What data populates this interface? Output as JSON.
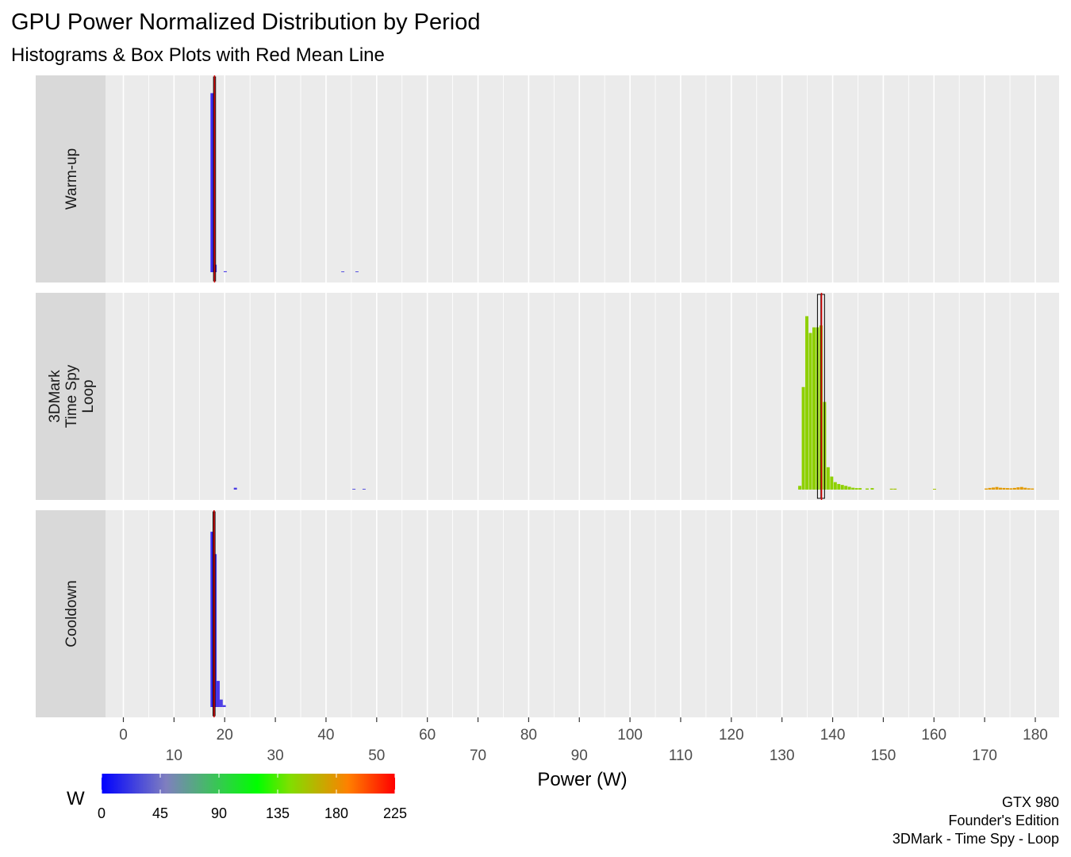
{
  "chart_data": {
    "type": "histogram",
    "title": "GPU Power Normalized Distribution by Period",
    "subtitle": "Histograms & Box Plots with Red Mean Line",
    "xlabel": "Power (W)",
    "xlim": [
      -3,
      185
    ],
    "major_ticks_row1": [
      "0",
      "20",
      "40",
      "60",
      "80",
      "100",
      "120",
      "140",
      "160",
      "180"
    ],
    "major_ticks_row2": [
      "10",
      "30",
      "50",
      "70",
      "90",
      "110",
      "130",
      "150",
      "170"
    ],
    "legend": {
      "title": "W",
      "ticks": [
        "0",
        "45",
        "90",
        "135",
        "180",
        "225"
      ],
      "range": [
        0,
        225
      ],
      "colors": [
        "#0000ff",
        "#7f7fbf",
        "#00ff00",
        "#7fdf00",
        "#ff8000",
        "#ff0000"
      ]
    },
    "caption": [
      "GTX 980",
      "Founder's Edition",
      "3DMark - Time Spy - Loop"
    ],
    "panels": [
      {
        "label": [
          "Warm-up"
        ],
        "mean": 18.0,
        "box": [
          17.6,
          17.8,
          18.0,
          18.2,
          18.4
        ],
        "bars": [
          [
            17.2,
            0.96,
            "#3a2cf0"
          ],
          [
            17.8,
            0.04,
            "#4b36e8"
          ],
          [
            19.8,
            0.005,
            "#4e3fe5"
          ],
          [
            43.0,
            0.004,
            "#5550dd"
          ],
          [
            45.8,
            0.004,
            "#5550dd"
          ]
        ]
      },
      {
        "label": [
          "3DMark",
          "Time Spy",
          "Loop"
        ],
        "mean": 137.8,
        "box": [
          136.3,
          137.0,
          137.7,
          138.4,
          139.0
        ],
        "bars": [
          [
            133.2,
            0.02,
            "#8ed000"
          ],
          [
            133.9,
            0.55,
            "#8ed000"
          ],
          [
            134.6,
            0.93,
            "#8ed000"
          ],
          [
            135.3,
            0.84,
            "#8ed000"
          ],
          [
            136.0,
            0.87,
            "#8ed000"
          ],
          [
            136.7,
            0.87,
            "#8ed000"
          ],
          [
            137.4,
            0.88,
            "#8ed000"
          ],
          [
            138.1,
            0.47,
            "#8ed000"
          ],
          [
            138.8,
            0.12,
            "#8ed000"
          ],
          [
            139.5,
            0.07,
            "#8ed000"
          ],
          [
            140.2,
            0.04,
            "#8ed000"
          ],
          [
            140.9,
            0.03,
            "#8ed000"
          ],
          [
            141.6,
            0.025,
            "#8ed000"
          ],
          [
            142.3,
            0.02,
            "#8ed000"
          ],
          [
            143.0,
            0.015,
            "#8ed000"
          ],
          [
            143.7,
            0.01,
            "#8ed000"
          ],
          [
            144.4,
            0.008,
            "#8ed000"
          ],
          [
            145.1,
            0.008,
            "#8ed000"
          ],
          [
            146.5,
            0.006,
            "#8ed000"
          ],
          [
            147.5,
            0.008,
            "#8ed000"
          ],
          [
            151.3,
            0.005,
            "#a0c400"
          ],
          [
            152.0,
            0.005,
            "#a0c400"
          ],
          [
            159.8,
            0.004,
            "#a4c000"
          ],
          [
            170.0,
            0.006,
            "#e29a00"
          ],
          [
            170.7,
            0.009,
            "#e29a00"
          ],
          [
            171.4,
            0.011,
            "#e29a00"
          ],
          [
            172.1,
            0.014,
            "#e29a00"
          ],
          [
            172.8,
            0.01,
            "#e29a00"
          ],
          [
            173.5,
            0.009,
            "#e29a00"
          ],
          [
            174.2,
            0.008,
            "#e29a00"
          ],
          [
            174.9,
            0.007,
            "#e29a00"
          ],
          [
            175.6,
            0.009,
            "#e29a00"
          ],
          [
            176.3,
            0.012,
            "#e29a00"
          ],
          [
            177.0,
            0.014,
            "#e29a00"
          ],
          [
            177.7,
            0.01,
            "#e29a00"
          ],
          [
            178.4,
            0.007,
            "#e29a00"
          ],
          [
            179.1,
            0.006,
            "#e29a00"
          ],
          [
            21.8,
            0.01,
            "#4a3be4"
          ],
          [
            45.2,
            0.004,
            "#5550dd"
          ],
          [
            47.2,
            0.004,
            "#5550dd"
          ]
        ]
      },
      {
        "label": [
          "Cooldown"
        ],
        "mean": 17.9,
        "box": [
          17.5,
          17.7,
          17.9,
          18.1,
          18.3
        ],
        "bars": [
          [
            17.2,
            0.94,
            "#3a2cf0"
          ],
          [
            17.8,
            0.82,
            "#4b36e8"
          ],
          [
            18.4,
            0.14,
            "#4b36e8"
          ],
          [
            19.0,
            0.04,
            "#4e3fe5"
          ],
          [
            19.6,
            0.01,
            "#4e3fe5"
          ]
        ]
      }
    ]
  }
}
